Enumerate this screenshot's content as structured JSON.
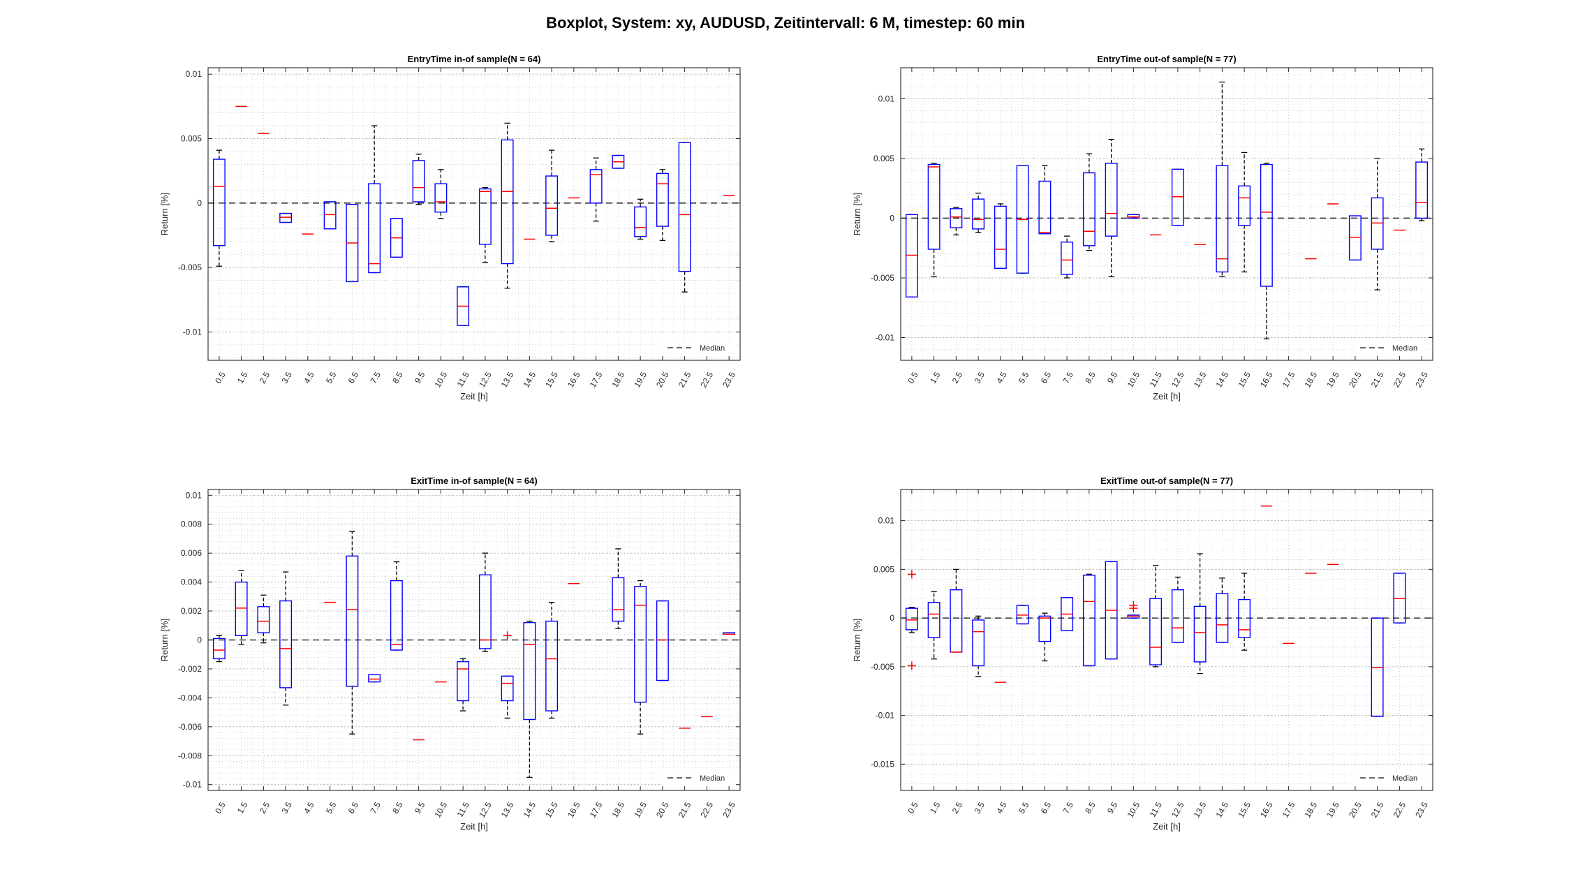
{
  "title": "Boxplot, System: xy, AUDUSD, Zeitintervall: 6 M, timestep: 60 min",
  "colors": {
    "box": "#0000ff",
    "median": "#ff0000",
    "whisker": "#000000",
    "outlier": "#ff0000",
    "grid": "#c8c8c8",
    "axes": "#262626",
    "background": "#ffffff"
  },
  "chart_data": [
    {
      "type": "boxplot",
      "title": "EntryTime in-of sample(N = 64)",
      "xlabel": "Zeit [h]",
      "ylabel": "Return [%]",
      "categories": [
        "0.5",
        "1.5",
        "2.5",
        "3.5",
        "4.5",
        "5.5",
        "6.5",
        "7.5",
        "8.5",
        "9.5",
        "10.5",
        "11.5",
        "12.5",
        "13.5",
        "14.5",
        "15.5",
        "16.5",
        "17.5",
        "18.5",
        "19.5",
        "20.5",
        "21.5",
        "22.5",
        "23.5"
      ],
      "ylim": [
        -0.0122,
        0.0105
      ],
      "yticks": [
        -0.01,
        -0.005,
        0,
        0.005,
        0.01
      ],
      "ytick_labels": [
        "-0.01",
        "-0.005",
        "0",
        "0.005",
        "0.01"
      ],
      "grid": true,
      "minor_grid": true,
      "legend": {
        "label": "Median",
        "position": "bottom-right"
      },
      "boxes": [
        {
          "x": "0.5",
          "q1": -0.0033,
          "median": 0.0013,
          "q3": 0.0034,
          "whisker_low": -0.0049,
          "whisker_high": 0.0041
        },
        {
          "x": "1.5",
          "median": 0.0075
        },
        {
          "x": "2.5",
          "median": 0.0054
        },
        {
          "x": "3.5",
          "q1": -0.0015,
          "median": -0.0011,
          "q3": -0.0008,
          "whisker_low": -0.0015,
          "whisker_high": -0.0008
        },
        {
          "x": "4.5",
          "median": -0.0024
        },
        {
          "x": "5.5",
          "q1": -0.002,
          "median": -0.0009,
          "q3": 0.0001,
          "whisker_low": -0.002,
          "whisker_high": 0.0001
        },
        {
          "x": "6.5",
          "q1": -0.0061,
          "median": -0.0031,
          "q3": -0.0001,
          "whisker_low": -0.0061,
          "whisker_high": -0.0001
        },
        {
          "x": "7.5",
          "q1": -0.0054,
          "median": -0.0047,
          "q3": 0.0015,
          "whisker_low": -0.0054,
          "whisker_high": 0.006
        },
        {
          "x": "8.5",
          "q1": -0.0042,
          "median": -0.0027,
          "q3": -0.0012,
          "whisker_low": -0.0042,
          "whisker_high": -0.0012
        },
        {
          "x": "9.5",
          "q1": 0.0001,
          "median": 0.0012,
          "q3": 0.0033,
          "whisker_low": -0.0001,
          "whisker_high": 0.0038
        },
        {
          "x": "10.5",
          "q1": -0.0007,
          "median": 0.0001,
          "q3": 0.0015,
          "whisker_low": -0.0012,
          "whisker_high": 0.0026
        },
        {
          "x": "11.5",
          "q1": -0.0095,
          "median": -0.008,
          "q3": -0.0065,
          "whisker_low": -0.0095,
          "whisker_high": -0.0065
        },
        {
          "x": "12.5",
          "q1": -0.0032,
          "median": 0.0009,
          "q3": 0.0011,
          "whisker_low": -0.0046,
          "whisker_high": 0.0012
        },
        {
          "x": "13.5",
          "q1": -0.0047,
          "median": 0.0009,
          "q3": 0.0049,
          "whisker_low": -0.0066,
          "whisker_high": 0.0062
        },
        {
          "x": "14.5",
          "median": -0.0028
        },
        {
          "x": "15.5",
          "q1": -0.0025,
          "median": -0.0004,
          "q3": 0.0021,
          "whisker_low": -0.003,
          "whisker_high": 0.0041
        },
        {
          "x": "16.5",
          "median": 0.0004
        },
        {
          "x": "17.5",
          "q1": 0.0,
          "median": 0.0022,
          "q3": 0.0026,
          "whisker_low": -0.0014,
          "whisker_high": 0.0035
        },
        {
          "x": "18.5",
          "q1": 0.0027,
          "median": 0.0032,
          "q3": 0.0037,
          "whisker_low": 0.0027,
          "whisker_high": 0.0037
        },
        {
          "x": "19.5",
          "q1": -0.0026,
          "median": -0.0019,
          "q3": -0.0003,
          "whisker_low": -0.0028,
          "whisker_high": 0.0003
        },
        {
          "x": "20.5",
          "q1": -0.0018,
          "median": 0.0015,
          "q3": 0.0023,
          "whisker_low": -0.0029,
          "whisker_high": 0.0026
        },
        {
          "x": "21.5",
          "q1": -0.0053,
          "median": -0.0009,
          "q3": 0.0047,
          "whisker_low": -0.0069,
          "whisker_high": 0.0047
        },
        {
          "x": "23.5",
          "median": 0.0006
        }
      ],
      "outliers": []
    },
    {
      "type": "boxplot",
      "title": "EntryTime out-of sample(N = 77)",
      "xlabel": "Zeit [h]",
      "ylabel": "Return [%]",
      "categories": [
        "0.5",
        "1.5",
        "2.5",
        "3.5",
        "4.5",
        "5.5",
        "6.5",
        "7.5",
        "8.5",
        "9.5",
        "10.5",
        "11.5",
        "12.5",
        "13.5",
        "14.5",
        "15.5",
        "16.5",
        "17.5",
        "18.5",
        "19.5",
        "20.5",
        "21.5",
        "22.5",
        "23.5"
      ],
      "ylim": [
        -0.0119,
        0.0126
      ],
      "yticks": [
        -0.01,
        -0.005,
        0,
        0.005,
        0.01
      ],
      "ytick_labels": [
        "-0.01",
        "-0.005",
        "0",
        "0.005",
        "0.01"
      ],
      "grid": true,
      "minor_grid": true,
      "legend": {
        "label": "Median",
        "position": "bottom-right"
      },
      "boxes": [
        {
          "x": "0.5",
          "q1": -0.0066,
          "median": -0.0031,
          "q3": 0.0003,
          "whisker_low": -0.0066,
          "whisker_high": 0.0003
        },
        {
          "x": "1.5",
          "q1": -0.0026,
          "median": 0.0043,
          "q3": 0.0045,
          "whisker_low": -0.0049,
          "whisker_high": 0.0046
        },
        {
          "x": "2.5",
          "q1": -0.0008,
          "median": 0.0001,
          "q3": 0.0008,
          "whisker_low": -0.0014,
          "whisker_high": 0.0009
        },
        {
          "x": "3.5",
          "q1": -0.0009,
          "median": -0.0001,
          "q3": 0.0016,
          "whisker_low": -0.0012,
          "whisker_high": 0.0021
        },
        {
          "x": "4.5",
          "q1": -0.0042,
          "median": -0.0026,
          "q3": 0.001,
          "whisker_low": -0.0042,
          "whisker_high": 0.0012
        },
        {
          "x": "5.5",
          "q1": -0.0046,
          "median": -0.0001,
          "q3": 0.0044,
          "whisker_low": -0.0046,
          "whisker_high": 0.0044
        },
        {
          "x": "6.5",
          "q1": -0.0013,
          "median": -0.0012,
          "q3": 0.0031,
          "whisker_low": -0.0013,
          "whisker_high": 0.0044
        },
        {
          "x": "7.5",
          "q1": -0.0047,
          "median": -0.0035,
          "q3": -0.002,
          "whisker_low": -0.005,
          "whisker_high": -0.0015
        },
        {
          "x": "8.5",
          "q1": -0.0023,
          "median": -0.0011,
          "q3": 0.0038,
          "whisker_low": -0.0027,
          "whisker_high": 0.0054
        },
        {
          "x": "9.5",
          "q1": -0.0015,
          "median": 0.0004,
          "q3": 0.0046,
          "whisker_low": -0.0049,
          "whisker_high": 0.0066
        },
        {
          "x": "10.5",
          "q1": 0.0,
          "median": 0.0001,
          "q3": 0.0003,
          "whisker_low": 0.0,
          "whisker_high": 0.0003
        },
        {
          "x": "11.5",
          "median": -0.0014
        },
        {
          "x": "12.5",
          "q1": -0.0006,
          "median": 0.0018,
          "q3": 0.0041,
          "whisker_low": -0.0006,
          "whisker_high": 0.0041
        },
        {
          "x": "13.5",
          "median": -0.0022
        },
        {
          "x": "14.5",
          "q1": -0.0045,
          "median": -0.0034,
          "q3": 0.0044,
          "whisker_low": -0.0049,
          "whisker_high": 0.0114
        },
        {
          "x": "15.5",
          "q1": -0.0006,
          "median": 0.0017,
          "q3": 0.0027,
          "whisker_low": -0.0045,
          "whisker_high": 0.0055
        },
        {
          "x": "16.5",
          "q1": -0.0057,
          "median": 0.0005,
          "q3": 0.0045,
          "whisker_low": -0.0101,
          "whisker_high": 0.0046
        },
        {
          "x": "18.5",
          "median": -0.0034
        },
        {
          "x": "19.5",
          "median": 0.0012
        },
        {
          "x": "20.5",
          "q1": -0.0035,
          "median": -0.0016,
          "q3": 0.0002,
          "whisker_low": -0.0035,
          "whisker_high": 0.0002
        },
        {
          "x": "21.5",
          "q1": -0.0026,
          "median": -0.0004,
          "q3": 0.0017,
          "whisker_low": -0.006,
          "whisker_high": 0.005
        },
        {
          "x": "22.5",
          "median": -0.001
        },
        {
          "x": "23.5",
          "q1": 0.0,
          "median": 0.0013,
          "q3": 0.0047,
          "whisker_low": -0.0002,
          "whisker_high": 0.0058
        }
      ],
      "outliers": []
    },
    {
      "type": "boxplot",
      "title": "ExitTime in-of sample(N = 64)",
      "xlabel": "Zeit [h]",
      "ylabel": "Return [%]",
      "categories": [
        "0.5",
        "1.5",
        "2.5",
        "3.5",
        "4.5",
        "5.5",
        "6.5",
        "7.5",
        "8.5",
        "9.5",
        "10.5",
        "11.5",
        "12.5",
        "13.5",
        "14.5",
        "15.5",
        "16.5",
        "17.5",
        "18.5",
        "19.5",
        "20.5",
        "21.5",
        "22.5",
        "23.5"
      ],
      "ylim": [
        -0.0104,
        0.0104
      ],
      "yticks": [
        -0.01,
        -0.008,
        -0.006,
        -0.004,
        -0.002,
        0,
        0.002,
        0.004,
        0.006,
        0.008,
        0.01
      ],
      "ytick_labels": [
        "-0.01",
        "-0.008",
        "-0.006",
        "-0.004",
        "-0.002",
        "0",
        "0.002",
        "0.004",
        "0.006",
        "0.008",
        "0.01"
      ],
      "grid": true,
      "minor_grid": true,
      "legend": {
        "label": "Median",
        "position": "bottom-right"
      },
      "boxes": [
        {
          "x": "0.5",
          "q1": -0.0013,
          "median": -0.0007,
          "q3": 0.0001,
          "whisker_low": -0.0015,
          "whisker_high": 0.0003
        },
        {
          "x": "1.5",
          "q1": 0.0003,
          "median": 0.0022,
          "q3": 0.004,
          "whisker_low": -0.0003,
          "whisker_high": 0.0048
        },
        {
          "x": "2.5",
          "q1": 0.0005,
          "median": 0.0013,
          "q3": 0.0023,
          "whisker_low": -0.0002,
          "whisker_high": 0.0031
        },
        {
          "x": "3.5",
          "q1": -0.0033,
          "median": -0.0006,
          "q3": 0.0027,
          "whisker_low": -0.0045,
          "whisker_high": 0.0047
        },
        {
          "x": "5.5",
          "median": 0.0026
        },
        {
          "x": "6.5",
          "q1": -0.0032,
          "median": 0.0021,
          "q3": 0.0058,
          "whisker_low": -0.0065,
          "whisker_high": 0.0075
        },
        {
          "x": "7.5",
          "q1": -0.0029,
          "median": -0.0027,
          "q3": -0.0024,
          "whisker_low": -0.0029,
          "whisker_high": -0.0024
        },
        {
          "x": "8.5",
          "q1": -0.0007,
          "median": -0.0003,
          "q3": 0.0041,
          "whisker_low": -0.0007,
          "whisker_high": 0.0054
        },
        {
          "x": "9.5",
          "median": -0.0069
        },
        {
          "x": "10.5",
          "median": -0.0029
        },
        {
          "x": "11.5",
          "q1": -0.0042,
          "median": -0.002,
          "q3": -0.0015,
          "whisker_low": -0.0049,
          "whisker_high": -0.0013
        },
        {
          "x": "12.5",
          "q1": -0.0006,
          "median": 0.0,
          "q3": 0.0045,
          "whisker_low": -0.0008,
          "whisker_high": 0.006
        },
        {
          "x": "13.5",
          "q1": -0.0042,
          "median": -0.003,
          "q3": -0.0025,
          "whisker_low": -0.0054,
          "whisker_high": -0.0025
        },
        {
          "x": "14.5",
          "q1": -0.0055,
          "median": -0.0003,
          "q3": 0.0012,
          "whisker_low": -0.0095,
          "whisker_high": 0.0013
        },
        {
          "x": "15.5",
          "q1": -0.0049,
          "median": -0.0013,
          "q3": 0.0013,
          "whisker_low": -0.0054,
          "whisker_high": 0.0026
        },
        {
          "x": "16.5",
          "median": 0.0039
        },
        {
          "x": "18.5",
          "q1": 0.0013,
          "median": 0.0021,
          "q3": 0.0043,
          "whisker_low": 0.0008,
          "whisker_high": 0.0063
        },
        {
          "x": "19.5",
          "q1": -0.0043,
          "median": 0.0024,
          "q3": 0.0037,
          "whisker_low": -0.0065,
          "whisker_high": 0.0041
        },
        {
          "x": "20.5",
          "q1": -0.0028,
          "median": 0.0,
          "q3": 0.0027,
          "whisker_low": -0.0028,
          "whisker_high": 0.0027
        },
        {
          "x": "21.5",
          "median": -0.0061
        },
        {
          "x": "22.5",
          "median": -0.0053
        },
        {
          "x": "23.5",
          "q1": 0.0004,
          "median": 0.0004,
          "q3": 0.0005,
          "whisker_low": 0.0004,
          "whisker_high": 0.0005
        }
      ],
      "outliers": [
        {
          "x": "13.5",
          "y": 0.0003
        }
      ]
    },
    {
      "type": "boxplot",
      "title": "ExitTime out-of sample(N = 77)",
      "xlabel": "Zeit [h]",
      "ylabel": "Return [%]",
      "categories": [
        "0.5",
        "1.5",
        "2.5",
        "3.5",
        "4.5",
        "5.5",
        "6.5",
        "7.5",
        "8.5",
        "9.5",
        "10.5",
        "11.5",
        "12.5",
        "13.5",
        "14.5",
        "15.5",
        "16.5",
        "17.5",
        "18.5",
        "19.5",
        "20.5",
        "21.5",
        "22.5",
        "23.5"
      ],
      "ylim": [
        -0.0177,
        0.0132
      ],
      "yticks": [
        -0.015,
        -0.01,
        -0.005,
        0,
        0.005,
        0.01
      ],
      "ytick_labels": [
        "-0.015",
        "-0.01",
        "-0.005",
        "0",
        "0.005",
        "0.01"
      ],
      "grid": true,
      "minor_grid": true,
      "legend": {
        "label": "Median",
        "position": "bottom-right"
      },
      "boxes": [
        {
          "x": "0.5",
          "q1": -0.0012,
          "median": -0.0002,
          "q3": 0.001,
          "whisker_low": -0.0015,
          "whisker_high": 0.0011
        },
        {
          "x": "1.5",
          "q1": -0.002,
          "median": 0.0004,
          "q3": 0.0016,
          "whisker_low": -0.0042,
          "whisker_high": 0.0027
        },
        {
          "x": "2.5",
          "q1": -0.0035,
          "median": -0.0035,
          "q3": 0.0029,
          "whisker_low": -0.0035,
          "whisker_high": 0.005
        },
        {
          "x": "3.5",
          "q1": -0.0049,
          "median": -0.0014,
          "q3": -0.0002,
          "whisker_low": -0.006,
          "whisker_high": 0.0002
        },
        {
          "x": "4.5",
          "median": -0.0066
        },
        {
          "x": "5.5",
          "q1": -0.0006,
          "median": 0.0003,
          "q3": 0.0013,
          "whisker_low": -0.0006,
          "whisker_high": 0.0013
        },
        {
          "x": "6.5",
          "q1": -0.0024,
          "median": 0.0,
          "q3": 0.0002,
          "whisker_low": -0.0044,
          "whisker_high": 0.0005
        },
        {
          "x": "7.5",
          "q1": -0.0013,
          "median": 0.0004,
          "q3": 0.0021,
          "whisker_low": -0.0013,
          "whisker_high": 0.0021
        },
        {
          "x": "8.5",
          "q1": -0.0049,
          "median": 0.0017,
          "q3": 0.0044,
          "whisker_low": -0.0049,
          "whisker_high": 0.0045
        },
        {
          "x": "9.5",
          "q1": -0.0042,
          "median": 0.0008,
          "q3": 0.0058,
          "whisker_low": -0.0042,
          "whisker_high": 0.0058
        },
        {
          "x": "10.5",
          "q1": 0.0,
          "median": 0.0002,
          "q3": 0.0003,
          "whisker_low": 0.0,
          "whisker_high": 0.0003
        },
        {
          "x": "11.5",
          "q1": -0.0048,
          "median": -0.003,
          "q3": 0.002,
          "whisker_low": -0.005,
          "whisker_high": 0.0054
        },
        {
          "x": "12.5",
          "q1": -0.0025,
          "median": -0.001,
          "q3": 0.0029,
          "whisker_low": -0.0025,
          "whisker_high": 0.0042
        },
        {
          "x": "13.5",
          "q1": -0.0045,
          "median": -0.0015,
          "q3": 0.0012,
          "whisker_low": -0.0057,
          "whisker_high": 0.0066
        },
        {
          "x": "14.5",
          "q1": -0.0025,
          "median": -0.0007,
          "q3": 0.0025,
          "whisker_low": -0.0025,
          "whisker_high": 0.0041
        },
        {
          "x": "15.5",
          "q1": -0.002,
          "median": -0.0012,
          "q3": 0.0019,
          "whisker_low": -0.0033,
          "whisker_high": 0.0046
        },
        {
          "x": "16.5",
          "median": 0.0115
        },
        {
          "x": "17.5",
          "median": -0.0026
        },
        {
          "x": "18.5",
          "median": 0.0046
        },
        {
          "x": "19.5",
          "median": 0.0055
        },
        {
          "x": "21.5",
          "q1": -0.0101,
          "median": -0.0051,
          "q3": 0.0,
          "whisker_low": -0.0101,
          "whisker_high": 0.0
        },
        {
          "x": "22.5",
          "q1": -0.0005,
          "median": 0.002,
          "q3": 0.0046,
          "whisker_low": -0.0005,
          "whisker_high": 0.0046
        }
      ],
      "outliers": [
        {
          "x": "0.5",
          "y": 0.0045
        },
        {
          "x": "0.5",
          "y": -0.0049
        },
        {
          "x": "10.5",
          "y": 0.0013
        },
        {
          "x": "10.5",
          "y": 0.001
        }
      ]
    }
  ]
}
